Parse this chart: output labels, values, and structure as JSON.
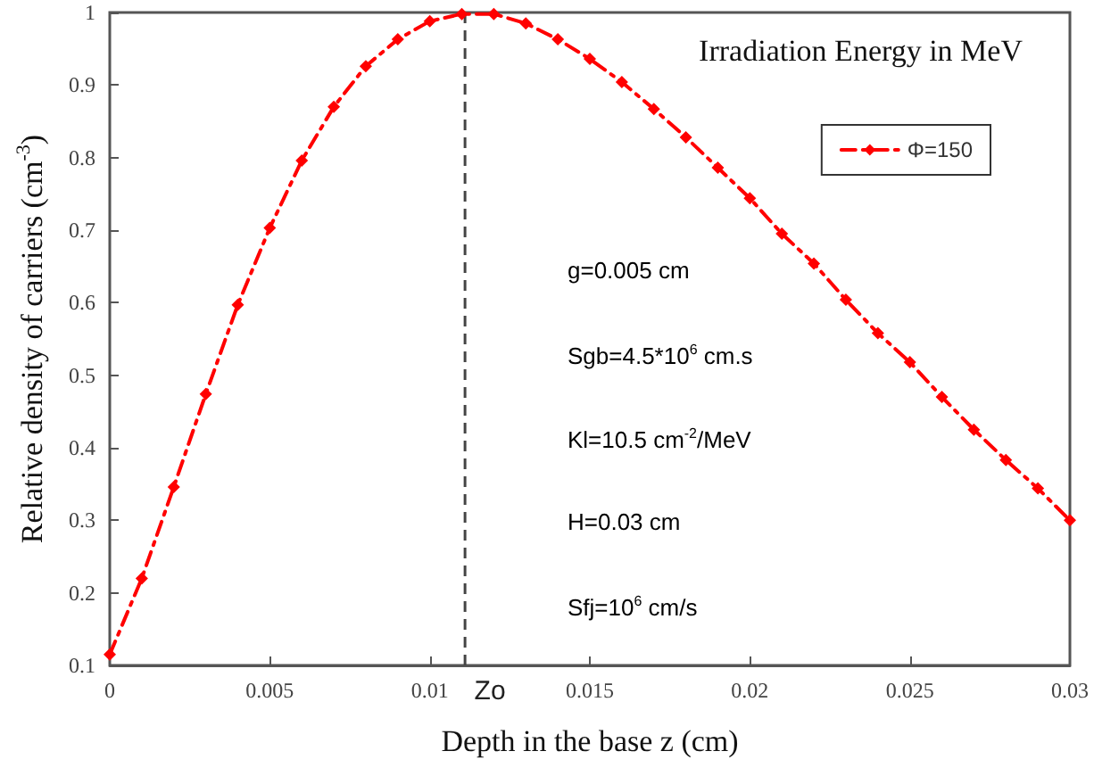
{
  "chart_data": {
    "type": "line",
    "title": "Irradiation Energy in MeV",
    "xlabel": "Depth in the base z (cm)",
    "ylabel": "Relative density of carriers (cm$^{-3}$)",
    "x": [
      0,
      0.001,
      0.002,
      0.003,
      0.004,
      0.005,
      0.006,
      0.007,
      0.008,
      0.009,
      0.01,
      0.011,
      0.012,
      0.013,
      0.014,
      0.015,
      0.016,
      0.017,
      0.018,
      0.019,
      0.02,
      0.021,
      0.022,
      0.023,
      0.024,
      0.025,
      0.026,
      0.027,
      0.028,
      0.029,
      0.03
    ],
    "series": [
      {
        "name": "Φ=150",
        "color": "#ff0000",
        "values": [
          0.115,
          0.22,
          0.346,
          0.474,
          0.597,
          0.703,
          0.796,
          0.87,
          0.926,
          0.963,
          0.988,
          0.998,
          0.998,
          0.985,
          0.963,
          0.936,
          0.904,
          0.867,
          0.828,
          0.786,
          0.744,
          0.695,
          0.654,
          0.604,
          0.558,
          0.518,
          0.47,
          0.425,
          0.383,
          0.344,
          0.3
        ]
      }
    ],
    "xlim": [
      0,
      0.03
    ],
    "xticks": [
      0,
      0.005,
      0.01,
      0.015,
      0.02,
      0.025,
      0.03
    ],
    "ylim": [
      0.1,
      1
    ],
    "yticks": [
      0.1,
      0.2,
      0.3,
      0.4,
      0.5,
      0.6,
      0.7,
      0.8,
      0.9,
      1
    ],
    "ref_lines": [
      {
        "axis": "x",
        "value": 0.0111,
        "label": "Zo",
        "color": "#444444",
        "line_style": "dashed"
      }
    ],
    "annotations": [
      "g=0.005 cm",
      "Sgb=4.5*10$^{6}$ cm.s",
      "Kl=10.5 cm$^{-2}$/MeV",
      "H=0.03 cm",
      "Sfj=10$^{6}$ cm/s"
    ],
    "legend": "top right",
    "grid": false,
    "marker": "diamond",
    "line_style": "dashed"
  }
}
